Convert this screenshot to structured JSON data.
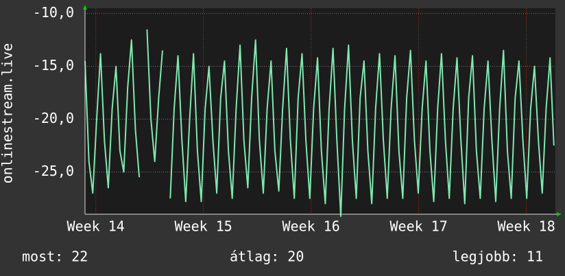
{
  "chart_data": {
    "type": "line",
    "y_label": "onlinestream.live",
    "xlim": [
      13.9,
      18.27
    ],
    "xticks": [
      {
        "value": 14,
        "label": "Week 14"
      },
      {
        "value": 15,
        "label": "Week 15"
      },
      {
        "value": 16,
        "label": "Week 16"
      },
      {
        "value": 17,
        "label": "Week 17"
      },
      {
        "value": 18,
        "label": "Week 18"
      }
    ],
    "ylim": [
      -29,
      -9.5
    ],
    "yticks": [
      {
        "value": -10,
        "label": "-10,0"
      },
      {
        "value": -15,
        "label": "-15,0"
      },
      {
        "value": -20,
        "label": "-20,0"
      },
      {
        "value": -25,
        "label": "-25,0"
      }
    ],
    "grid": true,
    "x": [
      13.9,
      13.936,
      13.972,
      14.008,
      14.044,
      14.08,
      14.116,
      14.152,
      14.188,
      14.224,
      14.26,
      14.296,
      14.332,
      14.368,
      14.404,
      14.44,
      14.476,
      14.512,
      14.548,
      14.584,
      14.62,
      14.656,
      14.692,
      14.728,
      14.764,
      14.8,
      14.836,
      14.872,
      14.908,
      14.944,
      14.98,
      15.016,
      15.052,
      15.088,
      15.124,
      15.16,
      15.196,
      15.232,
      15.268,
      15.304,
      15.34,
      15.376,
      15.412,
      15.448,
      15.484,
      15.52,
      15.556,
      15.592,
      15.628,
      15.664,
      15.7,
      15.736,
      15.772,
      15.808,
      15.844,
      15.88,
      15.916,
      15.952,
      15.988,
      16.024,
      16.06,
      16.096,
      16.132,
      16.168,
      16.204,
      16.24,
      16.276,
      16.312,
      16.348,
      16.384,
      16.42,
      16.456,
      16.492,
      16.528,
      16.564,
      16.6,
      16.636,
      16.672,
      16.708,
      16.744,
      16.78,
      16.816,
      16.852,
      16.888,
      16.924,
      16.96,
      16.996,
      17.032,
      17.068,
      17.104,
      17.14,
      17.176,
      17.212,
      17.248,
      17.284,
      17.32,
      17.356,
      17.392,
      17.428,
      17.464,
      17.5,
      17.536,
      17.572,
      17.608,
      17.644,
      17.68,
      17.716,
      17.752,
      17.788,
      17.824,
      17.86,
      17.896,
      17.932,
      17.968,
      18.004,
      18.04,
      18.076,
      18.112,
      18.148,
      18.184,
      18.22,
      18.256
    ],
    "series": [
      {
        "color": "#7fe8b0",
        "values": [
          -14.5,
          -24,
          -27,
          -20,
          -13.8,
          -22,
          -26.5,
          -19,
          -15,
          -23,
          -25,
          -17,
          -12.5,
          -21,
          -25.5,
          null,
          -11.5,
          -20,
          -24,
          -18,
          -13.5,
          null,
          -27.5,
          -19,
          -14,
          -22,
          -27.8,
          -20,
          -13.8,
          -23,
          -27.8,
          -19,
          -15,
          -22,
          -27,
          -18,
          -14.5,
          -23,
          -27.5,
          -19,
          -13,
          -22,
          -26.5,
          -18,
          -12.5,
          -22,
          -27,
          -19,
          -14.5,
          -23,
          -26.8,
          -19,
          -13.3,
          -22,
          -27.5,
          -18,
          -13.8,
          -22,
          -27.5,
          -19,
          -14.2,
          -23,
          -28,
          -19,
          -13.3,
          -22,
          -29.2,
          -19,
          -13,
          -22,
          -27.5,
          -18,
          -14.5,
          -23,
          -28,
          -19,
          -13.8,
          -22,
          -27.5,
          -19,
          -14,
          -23,
          -27.5,
          -18,
          -13.5,
          -22,
          -27,
          -19,
          -14.5,
          -23,
          -27.8,
          -19,
          -13.8,
          -22,
          -27.5,
          -19,
          -14.2,
          -22,
          -28,
          -18,
          -14,
          -23,
          -27.5,
          -19,
          -14.5,
          -22,
          -27.8,
          -19,
          -13.5,
          -23,
          -27.5,
          -18,
          -14.5,
          -22,
          -27.5,
          -19,
          -15,
          -22,
          -27,
          -19,
          -14.2,
          -22.5
        ]
      }
    ],
    "footer": {
      "current": "most: 22",
      "average": "átlag: 20",
      "best": "legjobb: 11"
    }
  }
}
